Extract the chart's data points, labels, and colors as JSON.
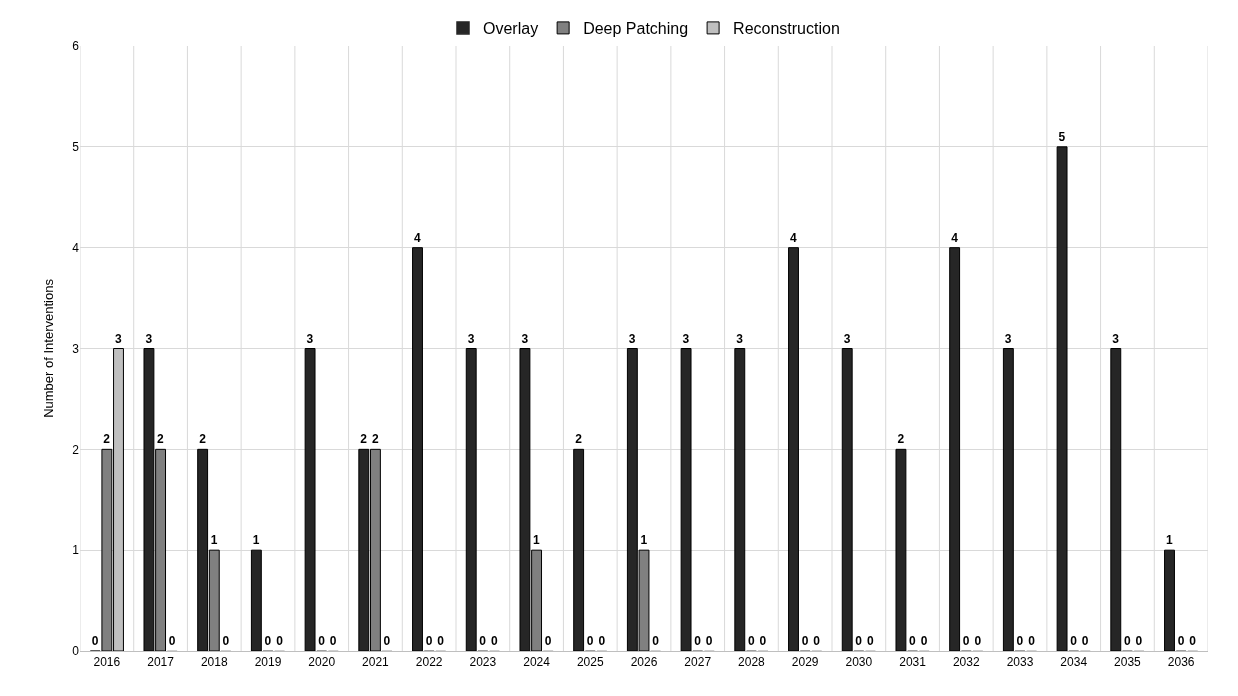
{
  "chart_data": {
    "type": "bar",
    "ylabel": "Number of Interventions",
    "categories": [
      "2016",
      "2017",
      "2018",
      "2019",
      "2020",
      "2021",
      "2022",
      "2023",
      "2024",
      "2025",
      "2026",
      "2027",
      "2028",
      "2029",
      "2030",
      "2031",
      "2032",
      "2033",
      "2034",
      "2035",
      "2036"
    ],
    "series": [
      {
        "name": "Overlay",
        "color": "#262626",
        "values": [
          0,
          3,
          2,
          1,
          3,
          2,
          4,
          3,
          3,
          2,
          3,
          3,
          3,
          4,
          3,
          2,
          4,
          3,
          5,
          3,
          1
        ]
      },
      {
        "name": "Deep Patching",
        "color": "#808080",
        "values": [
          2,
          2,
          1,
          0,
          0,
          2,
          0,
          0,
          1,
          0,
          1,
          0,
          0,
          0,
          0,
          0,
          0,
          0,
          0,
          0,
          0
        ]
      },
      {
        "name": "Reconstruction",
        "color": "#bfbfbf",
        "values": [
          3,
          0,
          0,
          0,
          0,
          0,
          0,
          0,
          0,
          0,
          0,
          0,
          0,
          0,
          0,
          0,
          0,
          0,
          0,
          0,
          0
        ]
      }
    ],
    "ylim": [
      0,
      6
    ],
    "yticks": [
      0,
      1,
      2,
      3,
      4,
      5,
      6
    ],
    "grid": true,
    "legend": "top",
    "data_labels": true
  }
}
